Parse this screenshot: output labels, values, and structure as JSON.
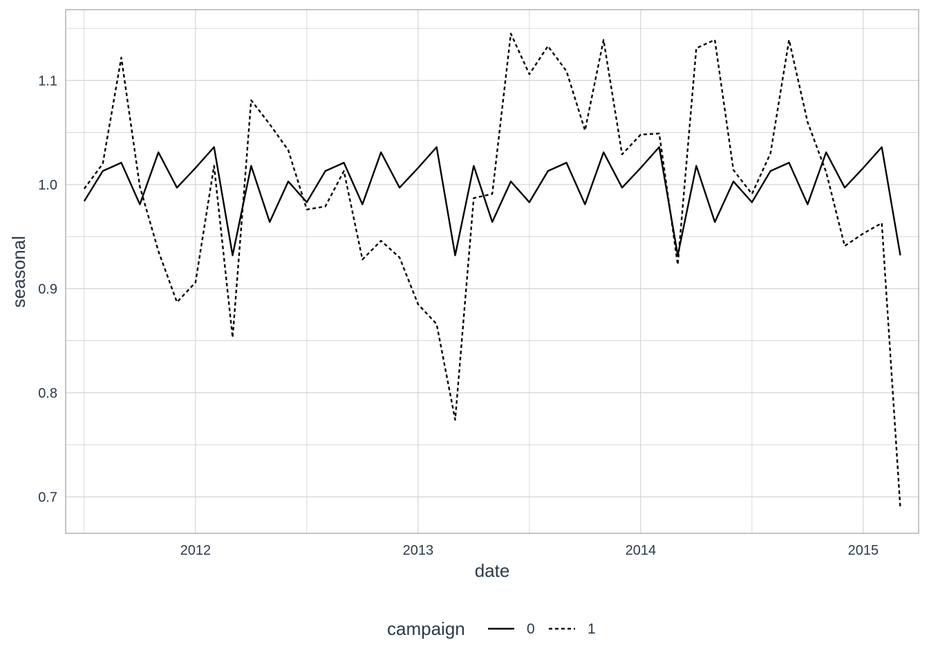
{
  "chart_data": {
    "type": "line",
    "xlabel": "date",
    "ylabel": "seasonal",
    "x_ticks": [
      "2012",
      "2013",
      "2014",
      "2015"
    ],
    "y_ticks": [
      "0.7",
      "0.8",
      "0.9",
      "1.0",
      "1.1"
    ],
    "xlim": [
      "2011-06-01",
      "2015-03-31"
    ],
    "ylim": [
      0.665,
      1.168
    ],
    "grid": true,
    "legend": {
      "title": "campaign",
      "position": "bottom"
    },
    "x": [
      "2011-07",
      "2011-08",
      "2011-09",
      "2011-10",
      "2011-11",
      "2011-12",
      "2012-01",
      "2012-02",
      "2012-03",
      "2012-04",
      "2012-05",
      "2012-06",
      "2012-07",
      "2012-08",
      "2012-09",
      "2012-10",
      "2012-11",
      "2012-12",
      "2013-01",
      "2013-02",
      "2013-03",
      "2013-04",
      "2013-05",
      "2013-06",
      "2013-07",
      "2013-08",
      "2013-09",
      "2013-10",
      "2013-11",
      "2013-12",
      "2014-01",
      "2014-02",
      "2014-03",
      "2014-04",
      "2014-05",
      "2014-06",
      "2014-07",
      "2014-08",
      "2014-09",
      "2014-10",
      "2014-11",
      "2014-12",
      "2015-01",
      "2015-02",
      "2015-03"
    ],
    "series": [
      {
        "name": "0",
        "line_style": "solid",
        "values": [
          0.984,
          1.013,
          1.021,
          0.981,
          1.031,
          0.997,
          1.016,
          1.036,
          0.932,
          1.018,
          0.964,
          1.003,
          0.983,
          1.013,
          1.021,
          0.981,
          1.031,
          0.997,
          1.016,
          1.036,
          0.932,
          1.018,
          0.964,
          1.003,
          0.983,
          1.013,
          1.021,
          0.981,
          1.031,
          0.997,
          1.016,
          1.036,
          0.932,
          1.018,
          0.964,
          1.003,
          0.983,
          1.013,
          1.021,
          0.981,
          1.031,
          0.997,
          1.016,
          1.036,
          0.932
        ]
      },
      {
        "name": "1",
        "line_style": "dashed",
        "values": [
          0.996,
          1.02,
          1.122,
          0.998,
          0.936,
          0.887,
          0.906,
          1.018,
          0.853,
          1.081,
          1.058,
          1.033,
          0.976,
          0.979,
          1.013,
          0.928,
          0.946,
          0.93,
          0.885,
          0.866,
          0.774,
          0.987,
          0.991,
          1.145,
          1.106,
          1.133,
          1.109,
          1.052,
          1.139,
          1.029,
          1.048,
          1.049,
          0.923,
          1.131,
          1.139,
          1.014,
          0.991,
          1.03,
          1.139,
          1.06,
          1.012,
          0.941,
          0.953,
          0.963,
          0.689
        ]
      }
    ]
  },
  "colors": {
    "line": "#000000",
    "grid": "#d0d0d0",
    "panel_border": "#9aa0a6",
    "text": "#2b3a4a"
  }
}
